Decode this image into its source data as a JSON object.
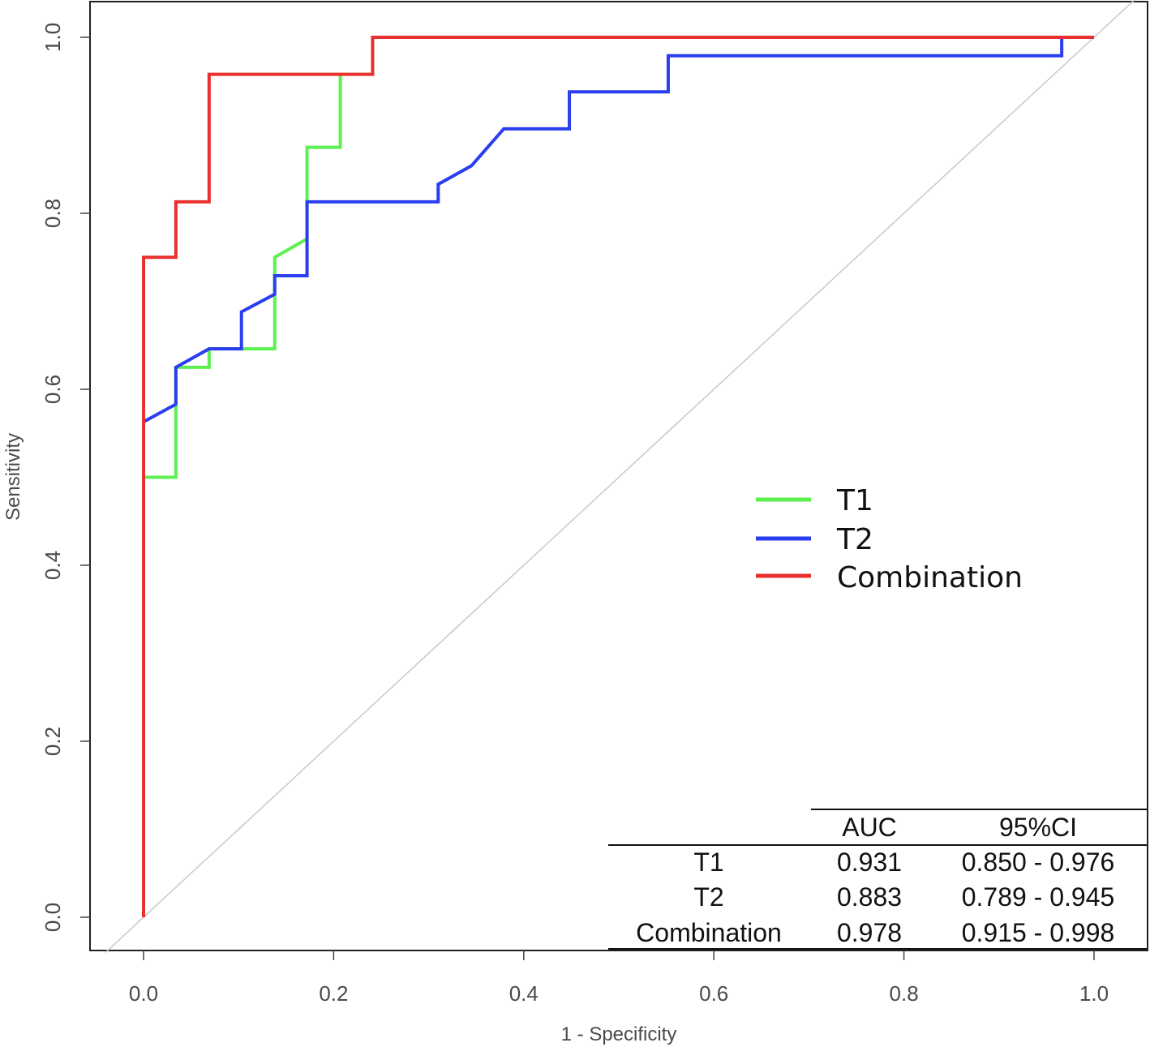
{
  "chart_data": {
    "type": "line",
    "title": "",
    "xlabel": "1 - Specificity",
    "ylabel": "Sensitivity",
    "xlim": [
      -0.04,
      1.06
    ],
    "ylim": [
      -0.04,
      1.04
    ],
    "xticks": [
      "0.0",
      "0.2",
      "0.4",
      "0.6",
      "0.8",
      "1.0"
    ],
    "yticks": [
      "0.0",
      "0.2",
      "0.4",
      "0.6",
      "0.8",
      "1.0"
    ],
    "reference_line": "diagonal",
    "legend_position": "center-right",
    "series": [
      {
        "name": "T1",
        "color": "#5cf050",
        "points": [
          [
            0,
            0
          ],
          [
            0,
            0.5
          ],
          [
            0.034,
            0.5
          ],
          [
            0.034,
            0.625
          ],
          [
            0.069,
            0.625
          ],
          [
            0.069,
            0.646
          ],
          [
            0.138,
            0.646
          ],
          [
            0.138,
            0.75
          ],
          [
            0.172,
            0.771
          ],
          [
            0.172,
            0.875
          ],
          [
            0.207,
            0.875
          ],
          [
            0.207,
            0.958
          ]
        ]
      },
      {
        "name": "T2",
        "color": "#2a3ef0",
        "points": [
          [
            0,
            0.563
          ],
          [
            0.034,
            0.583
          ],
          [
            0.034,
            0.625
          ],
          [
            0.069,
            0.646
          ],
          [
            0.103,
            0.646
          ],
          [
            0.103,
            0.688
          ],
          [
            0.138,
            0.708
          ],
          [
            0.138,
            0.729
          ],
          [
            0.172,
            0.729
          ],
          [
            0.172,
            0.813
          ],
          [
            0.31,
            0.813
          ],
          [
            0.31,
            0.833
          ],
          [
            0.345,
            0.854
          ],
          [
            0.379,
            0.896
          ],
          [
            0.448,
            0.896
          ],
          [
            0.448,
            0.938
          ],
          [
            0.552,
            0.938
          ],
          [
            0.552,
            0.979
          ],
          [
            0.966,
            0.979
          ],
          [
            0.966,
            1.0
          ],
          [
            1.0,
            1.0
          ]
        ]
      },
      {
        "name": "Combination",
        "color": "#e8302e",
        "points": [
          [
            0,
            0
          ],
          [
            0,
            0.75
          ],
          [
            0.034,
            0.75
          ],
          [
            0.034,
            0.813
          ],
          [
            0.069,
            0.813
          ],
          [
            0.069,
            0.958
          ],
          [
            0.241,
            0.958
          ],
          [
            0.241,
            1.0
          ],
          [
            1.0,
            1.0
          ]
        ]
      }
    ],
    "table": {
      "headers": [
        "",
        "AUC",
        "95%CI"
      ],
      "rows": [
        {
          "label": "T1",
          "auc": "0.931",
          "ci": "0.850 - 0.976"
        },
        {
          "label": "T2",
          "auc": "0.883",
          "ci": "0.789 - 0.945"
        },
        {
          "label": "Combination",
          "auc": "0.978",
          "ci": "0.915 - 0.998"
        }
      ]
    }
  }
}
